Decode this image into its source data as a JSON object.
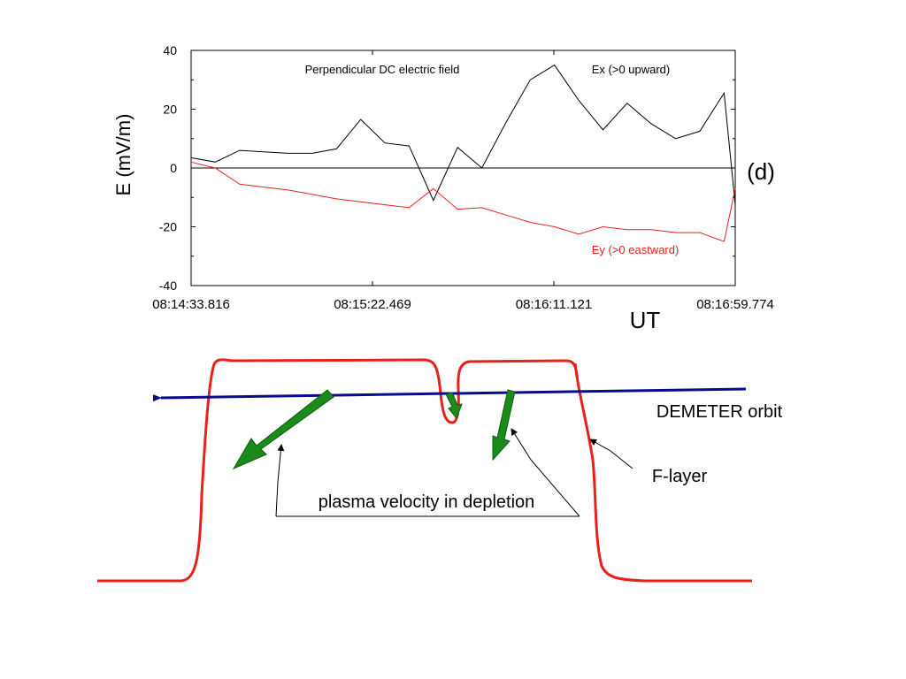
{
  "chart_data": {
    "type": "line",
    "title": "Perpendicular DC electric field",
    "panel_label": "(d)",
    "ylabel": "E (mV/m)",
    "xlabel": "UT",
    "ylim": [
      -40,
      40
    ],
    "yticks": [
      40,
      20,
      0,
      -20,
      -40
    ],
    "xticks": [
      "08:14:33.816",
      "08:15:22.469",
      "08:16:11.121",
      "08:16:59.774"
    ],
    "xlim_seconds": [
      0,
      146
    ],
    "zero_line": true,
    "series": [
      {
        "name": "Ex (>0 upward)",
        "color": "#000000",
        "x": [
          0,
          6.5,
          13,
          26,
          32.5,
          39,
          45.5,
          52,
          58.5,
          65,
          71.5,
          78,
          84.5,
          91,
          97.5,
          104,
          110.5,
          117,
          123.5,
          130,
          136.5,
          143,
          146
        ],
        "y": [
          3.5,
          2,
          6,
          5,
          5,
          6.5,
          16.5,
          8.5,
          7.5,
          -11,
          7,
          0,
          15.5,
          30,
          35,
          23,
          13,
          22,
          15,
          10,
          12.5,
          25.5,
          -12.5
        ]
      },
      {
        "name": "Ey (>0 eastward)",
        "color": "#e8201c",
        "x": [
          0,
          6.5,
          13,
          19.5,
          26,
          32.5,
          39,
          45.5,
          52,
          58.5,
          65,
          71.5,
          78,
          84.5,
          91,
          97.5,
          104,
          110.5,
          117,
          123.5,
          130,
          136.5,
          143,
          146
        ],
        "y": [
          2,
          0,
          -5.5,
          -6.5,
          -7.5,
          -9,
          -10.5,
          -11.5,
          -12.5,
          -13.5,
          -7,
          -14,
          -13.5,
          -16,
          -18.5,
          -20,
          -22.5,
          -20,
          -21,
          -21,
          -22,
          -22,
          -25,
          -7
        ]
      }
    ]
  },
  "diagram": {
    "orbit_label": "DEMETER orbit",
    "flayer_label": "F-layer",
    "plasma_label": "plasma velocity in depletion",
    "flayer_color": "#e8201c",
    "orbit_color": "#0a0a8c",
    "arrow_color": "#1a8a1a"
  }
}
